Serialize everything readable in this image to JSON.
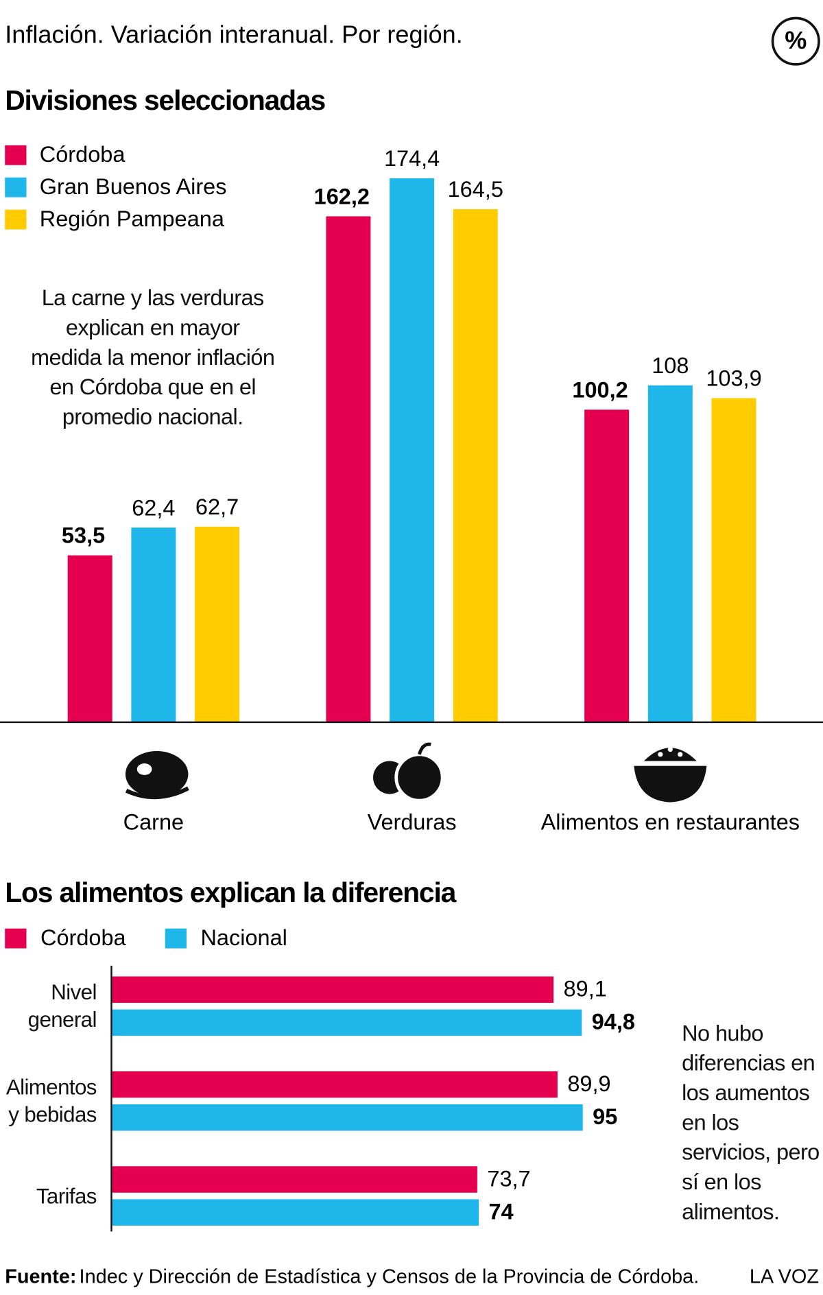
{
  "header": {
    "title": "Inflación. Variación interanual. Por región.",
    "badge": "%"
  },
  "chart_data": [
    {
      "type": "bar",
      "title": "Divisiones seleccionadas",
      "annotation": "La carne y las verduras explican en mayor medida la menor inflación en Córdoba que en el promedio nacional.",
      "categories": [
        "Carne",
        "Verduras",
        "Alimentos en restaurantes"
      ],
      "series": [
        {
          "name": "Córdoba",
          "color": "#e4004f",
          "values": [
            53.5,
            162.2,
            100.2
          ],
          "value_labels": [
            "53,5",
            "162,2",
            "100,2"
          ]
        },
        {
          "name": "Gran Buenos Aires",
          "color": "#1fb6ea",
          "values": [
            62.4,
            174.4,
            108
          ],
          "value_labels": [
            "62,4",
            "174,4",
            "108"
          ]
        },
        {
          "name": "Región Pampeana",
          "color": "#fecc00",
          "values": [
            62.7,
            164.5,
            103.9
          ],
          "value_labels": [
            "62,7",
            "164,5",
            "103,9"
          ]
        }
      ]
    },
    {
      "type": "hbar",
      "title": "Los alimentos explican la diferencia",
      "annotation": "No hubo diferencias en los aumentos en los servicios, pero sí en los alimentos.",
      "categories": [
        "Nivel general",
        "Alimentos y bebidas",
        "Tarifas"
      ],
      "series": [
        {
          "name": "Córdoba",
          "color": "#e4004f",
          "values": [
            89.1,
            89.9,
            73.7
          ],
          "value_labels": [
            "89,1",
            "89,9",
            "73,7"
          ]
        },
        {
          "name": "Nacional",
          "color": "#1fb6ea",
          "values": [
            94.8,
            95,
            74
          ],
          "value_labels": [
            "94,8",
            "95",
            "74"
          ]
        }
      ]
    }
  ],
  "footer": {
    "source_label": "Fuente:",
    "source": "Indec y Dirección de Estadística y Censos de la Provincia de Córdoba.",
    "brand": "LA VOZ"
  }
}
